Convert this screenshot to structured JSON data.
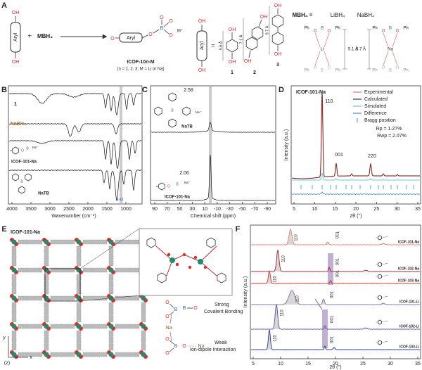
{
  "atoms": {
    "oh": "OH",
    "o": "O",
    "b": "B",
    "ph": "Ph",
    "li": "Li",
    "na": "Na",
    "m_plus": "M⁺",
    "na_plus": "Na⁺"
  },
  "panel_a": {
    "label": "A",
    "aryl": "Aryl",
    "plus": "+",
    "reagent": "MBH₄",
    "product_name": "ICOF-10n-M",
    "product_note": "(n = 1, 2, 3; M = Li or Na)",
    "equals": "=",
    "linkers": [
      {
        "number": "1",
        "length": "5.6 Å"
      },
      {
        "number": "2",
        "length": "7.1 Å"
      },
      {
        "number": "3",
        "length": "9.7 Å"
      }
    ],
    "borohydride": "MBH₄ =",
    "options": [
      "LiBH₄",
      "NaBH₄"
    ],
    "li_distance": "5.1 Å",
    "na_distance": "5.7 Å"
  },
  "panel_b": {
    "label": "B",
    "traces": [
      "1",
      "NaBH₄",
      "ICOF-101-Na",
      "NaTB"
    ],
    "band": "B-O",
    "xticks": [
      "4000",
      "3500",
      "3000",
      "2500",
      "2000",
      "1500",
      "1000"
    ],
    "xlabel": "Wavenumber (cm⁻¹)"
  },
  "panel_c": {
    "label": "C",
    "shifts": [
      "2.58",
      "2.06"
    ],
    "traces": [
      "NaTB",
      "ICOF-101-Na"
    ],
    "xticks": [
      "90",
      "70",
      "50",
      "30",
      "10",
      "-10",
      "-30",
      "-50",
      "-70",
      "-90"
    ],
    "xlabel": "Chemical shift (ppm)"
  },
  "panel_d": {
    "label": "D",
    "title": "ICOF-101-Na",
    "legend": [
      "Experimental",
      "Calculated",
      "Simulated",
      "Difference",
      "Bragg position"
    ],
    "rp": "Rp = 1.27%",
    "rwp": "Rwp = 2.07%",
    "peaks": [
      "110",
      "001",
      "220"
    ],
    "ylabel": "Intensity (a.u.)",
    "xticks": [
      "5",
      "10",
      "15",
      "20",
      "25",
      "30",
      "35"
    ],
    "xlabel": "2θ (°)"
  },
  "panel_e": {
    "label": "E",
    "title": "ICOF-101-Na",
    "axes": [
      "y",
      "x",
      "(z)"
    ],
    "strong": [
      "Strong",
      "Covalent Bonding"
    ],
    "weak": [
      "Weak",
      "Ion-dipole Interaction"
    ],
    "dots": "·····"
  },
  "panel_f": {
    "label": "F",
    "peaks": [
      "110",
      "001"
    ],
    "samples": [
      "ICOF-101-Na",
      "ICOF-102-Na",
      "ICOF-103-Na",
      "ICOF-101-Li",
      "ICOF-102-Li",
      "ICOF-103-Li"
    ],
    "ylabel": "Intensity (a.u.)",
    "xticks": [
      "5",
      "10",
      "15",
      "20",
      "25",
      "30",
      "35"
    ],
    "xlabel": "2θ (°)"
  }
}
